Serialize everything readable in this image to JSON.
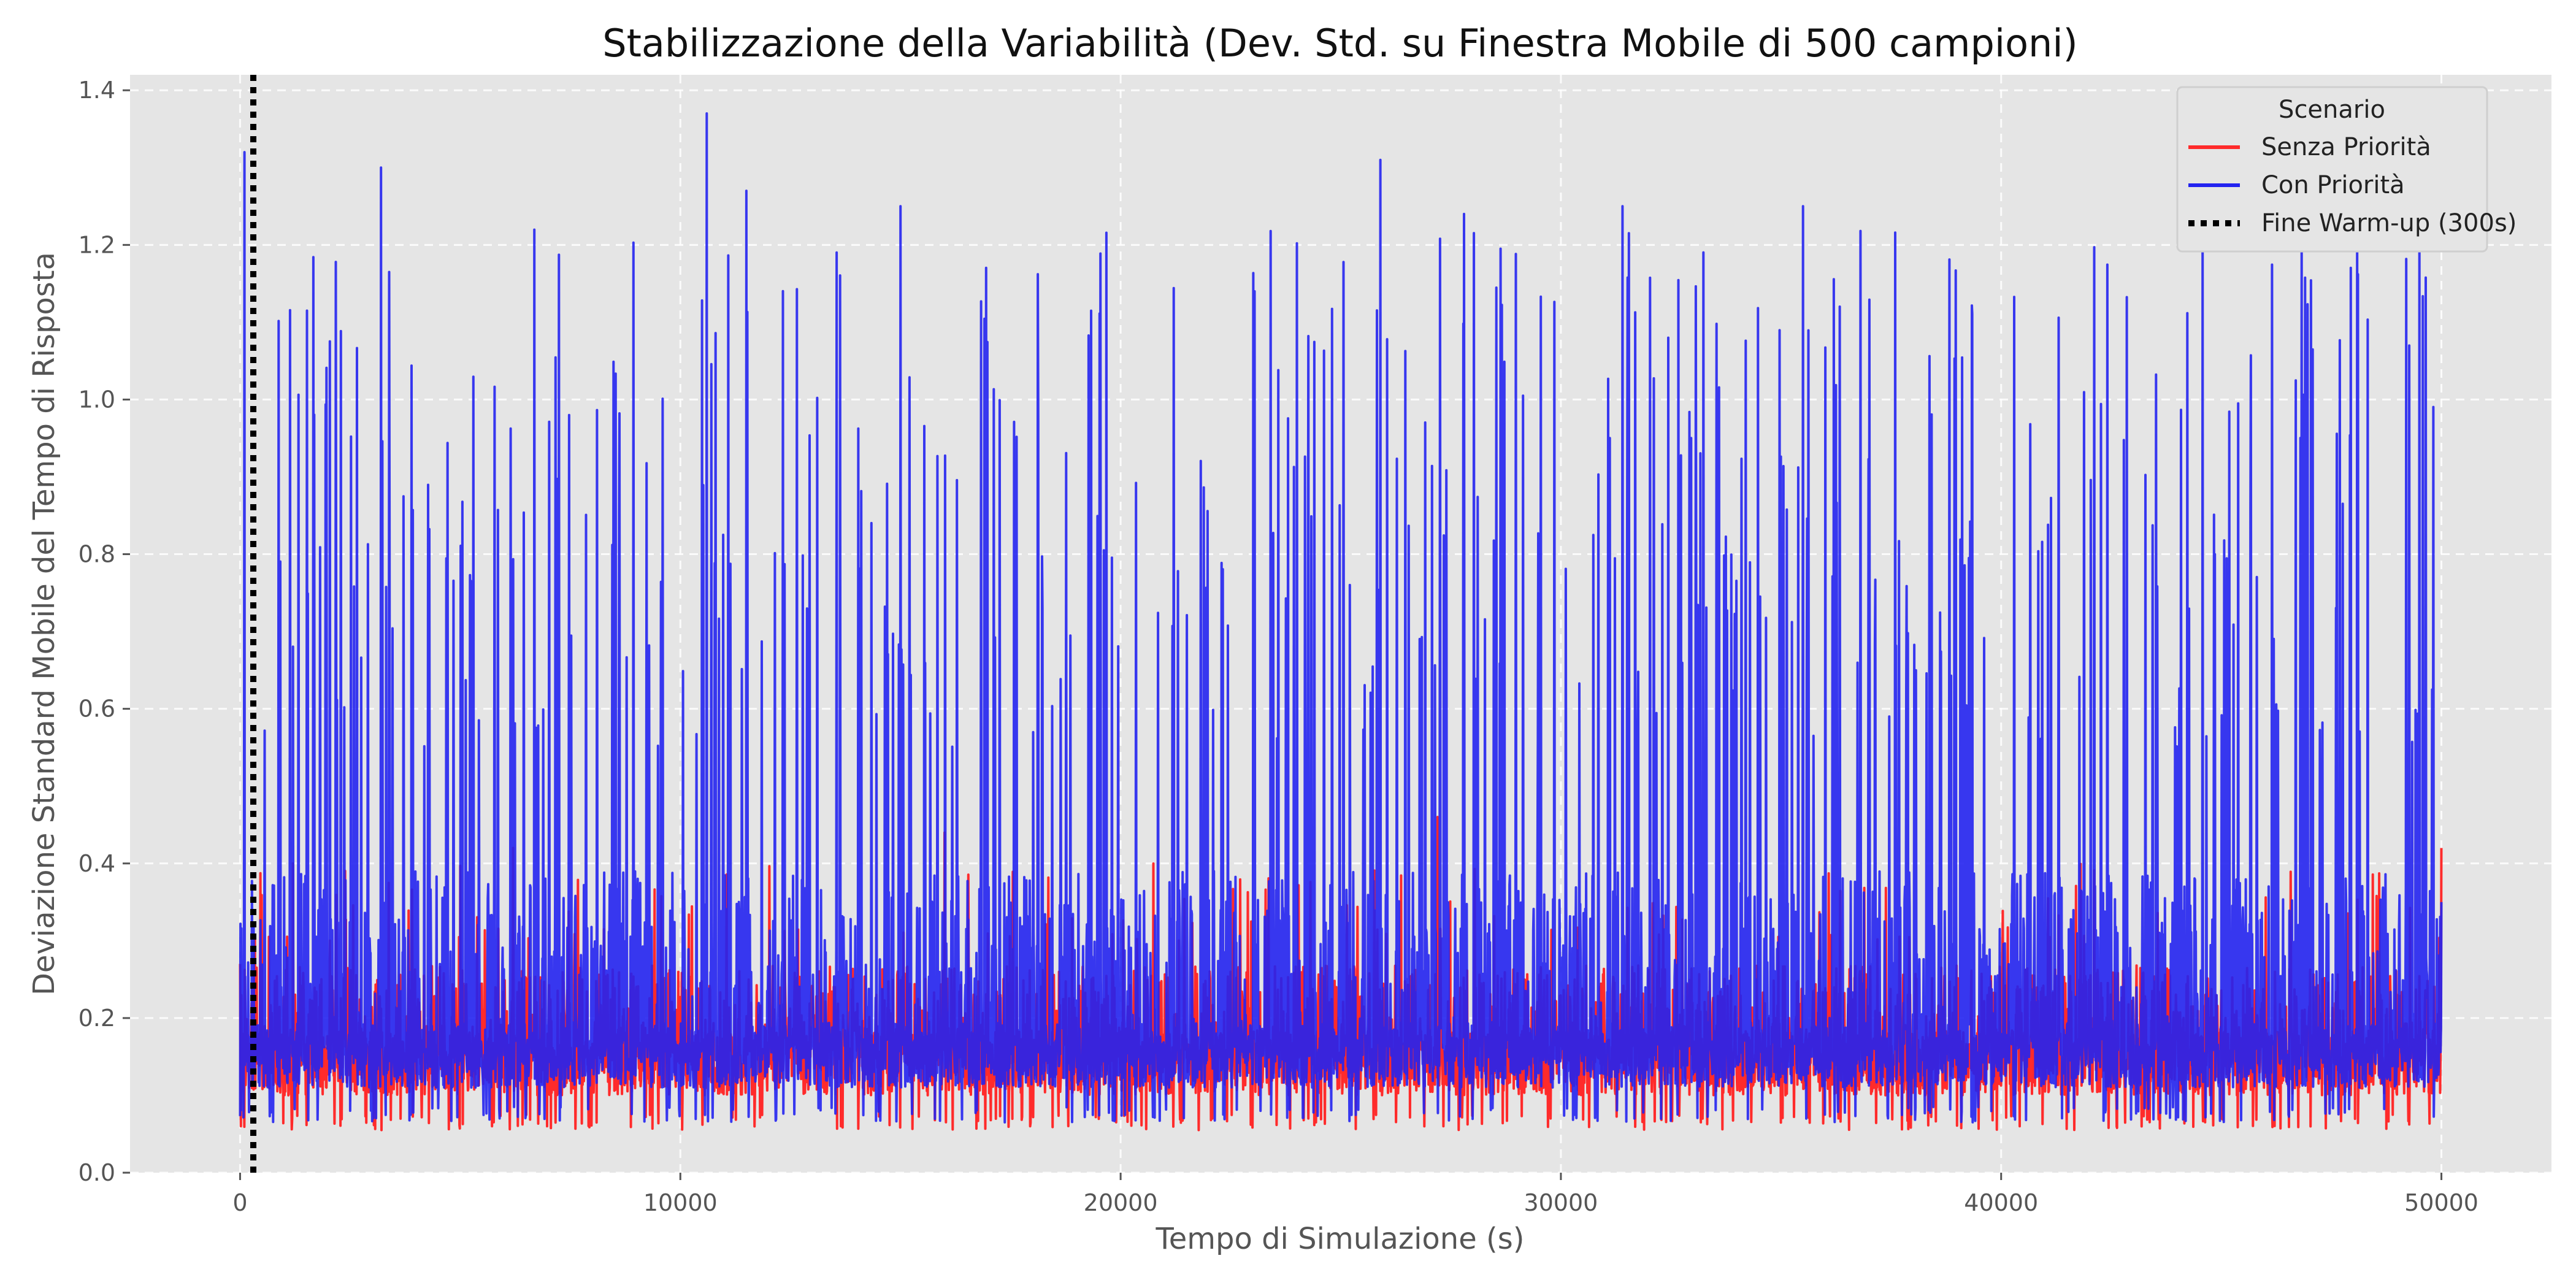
{
  "chart_data": {
    "type": "line",
    "title": "Stabilizzazione della Variabilità (Dev. Std. su Finestra Mobile di 500 campioni)",
    "xlabel": "Tempo di Simulazione (s)",
    "ylabel": "Deviazione Standard Mobile del Tempo di Risposta",
    "xlim": [
      -2500,
      52500
    ],
    "ylim": [
      0,
      1.42
    ],
    "xticks": [
      0,
      10000,
      20000,
      30000,
      40000,
      50000
    ],
    "xtick_labels": [
      "0",
      "10000",
      "20000",
      "30000",
      "40000",
      "50000"
    ],
    "yticks": [
      0.0,
      0.2,
      0.4,
      0.6,
      0.8,
      1.0,
      1.2,
      1.4
    ],
    "ytick_labels": [
      "0.0",
      "0.2",
      "0.4",
      "0.6",
      "0.8",
      "1.0",
      "1.2",
      "1.4"
    ],
    "grid": true,
    "background": "#e5e5e5",
    "legend": {
      "title": "Scenario",
      "position": "top-right",
      "entries": [
        {
          "label": "Senza Priorità",
          "color": "#ff2b2b",
          "style": "solid"
        },
        {
          "label": "Con Priorità",
          "color": "#2323f0",
          "style": "solid"
        },
        {
          "label": "Fine Warm-up (300s)",
          "color": "#000000",
          "style": "dotted"
        }
      ]
    },
    "series": [
      {
        "name": "Senza Priorità",
        "color": "#ff2b2b",
        "x_range": [
          0,
          50000
        ],
        "baseline": 0.14,
        "typical_min": 0.08,
        "typical_max": 0.3,
        "peaks": [
          [
            0,
            0.27
          ],
          [
            300,
            0.11
          ],
          [
            1200,
            0.4
          ],
          [
            6200,
            0.42
          ],
          [
            16000,
            0.44
          ],
          [
            27200,
            0.46
          ],
          [
            50000,
            0.42
          ]
        ]
      },
      {
        "name": "Con Priorità",
        "color": "#2323f0",
        "x_range": [
          0,
          50000
        ],
        "baseline": 0.15,
        "typical_min": 0.09,
        "typical_max": 0.45,
        "peaks": [
          [
            100,
            1.32
          ],
          [
            3200,
            1.3
          ],
          [
            10600,
            1.37
          ],
          [
            11500,
            1.27
          ],
          [
            15000,
            1.25
          ],
          [
            25900,
            1.31
          ],
          [
            27800,
            1.24
          ],
          [
            31400,
            1.25
          ],
          [
            35500,
            1.25
          ],
          [
            49500,
            1.2
          ]
        ]
      },
      {
        "name": "Fine Warm-up (300s)",
        "color": "#000000",
        "type": "vline",
        "x": 300
      }
    ]
  }
}
